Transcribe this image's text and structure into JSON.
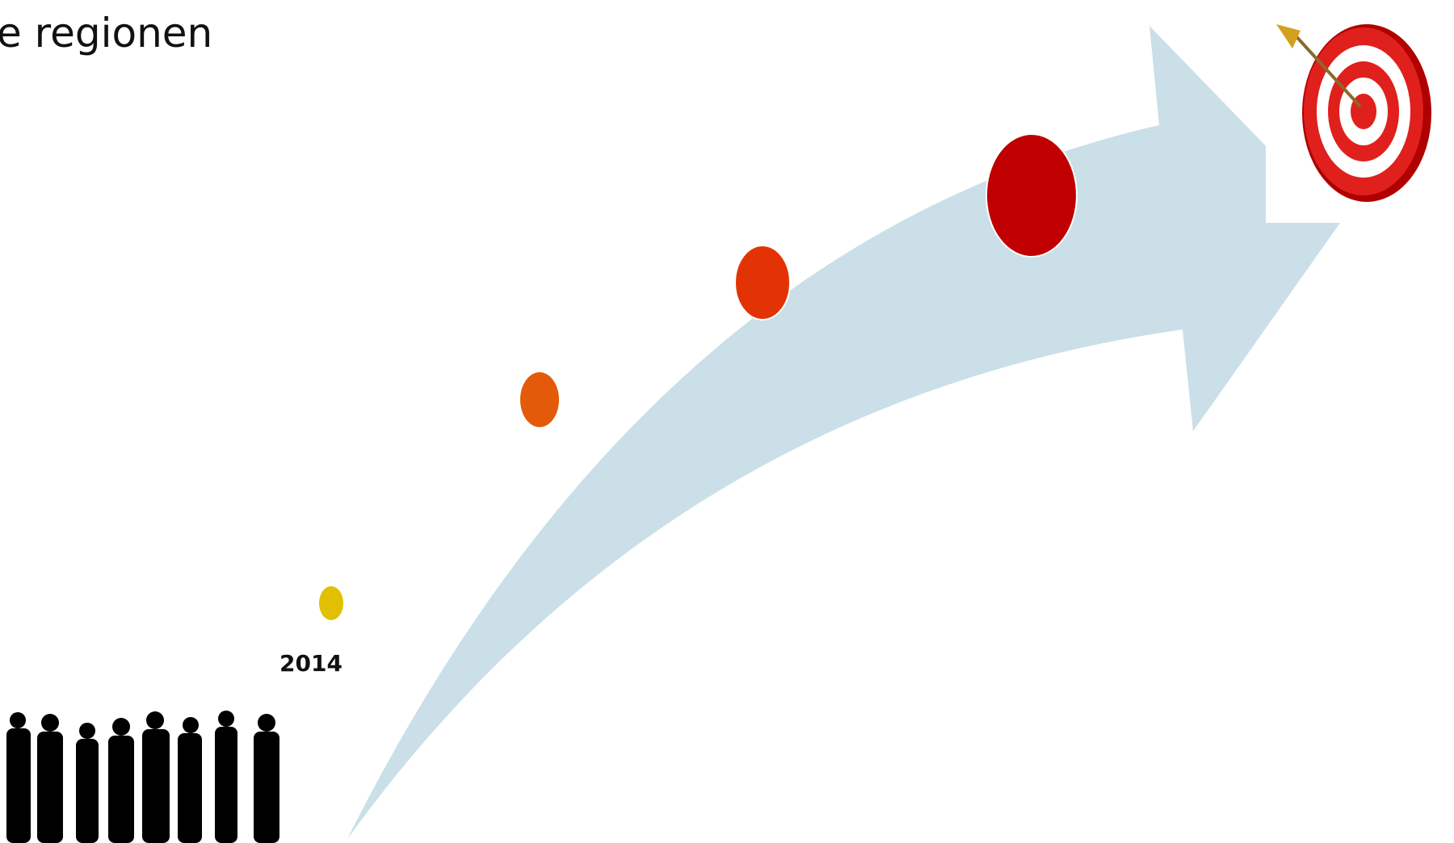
{
  "header": {
    "title": "e regionen"
  },
  "milestones": [
    {
      "label": "2014"
    }
  ]
}
